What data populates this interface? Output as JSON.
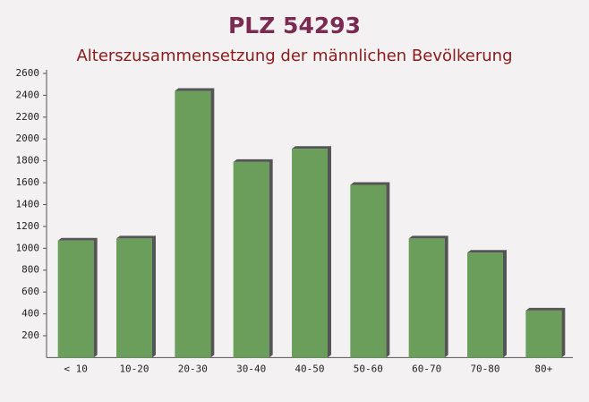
{
  "chart_data": {
    "type": "bar",
    "title": "PLZ 54293",
    "subtitle": "Alterszusammensetzung der männlichen Bevölkerung",
    "categories": [
      "< 10",
      "10-20",
      "20-30",
      "30-40",
      "40-50",
      "50-60",
      "60-70",
      "70-80",
      "80+"
    ],
    "values": [
      1070,
      1090,
      2440,
      1790,
      1910,
      1580,
      1090,
      960,
      430
    ],
    "color": "#6a9e5a",
    "ylim": [
      0,
      2600
    ],
    "yticks": [
      200,
      400,
      600,
      800,
      1000,
      1200,
      1400,
      1600,
      1800,
      2000,
      2200,
      2400,
      2600
    ]
  }
}
